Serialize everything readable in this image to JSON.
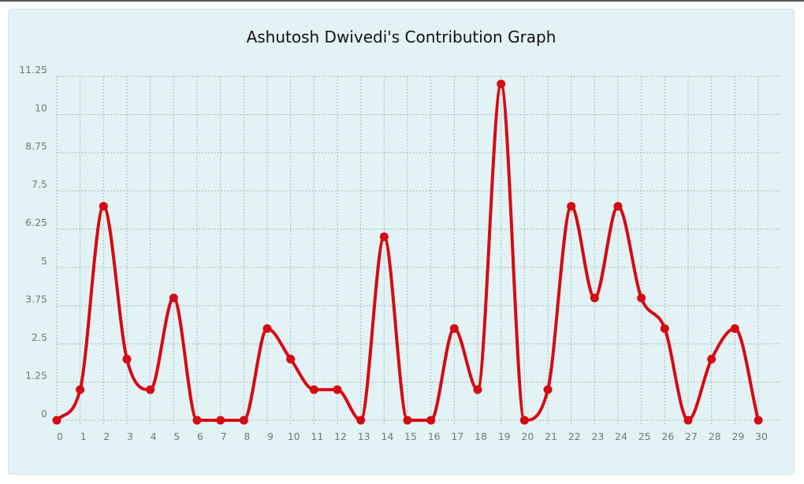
{
  "chart_data": {
    "type": "line",
    "title": "Ashutosh Dwivedi's Contribution Graph",
    "xlabel": "",
    "ylabel": "",
    "x": [
      0,
      1,
      2,
      3,
      4,
      5,
      6,
      7,
      8,
      9,
      10,
      11,
      12,
      13,
      14,
      15,
      16,
      17,
      18,
      19,
      20,
      21,
      22,
      23,
      24,
      25,
      26,
      27,
      28,
      29,
      30
    ],
    "series": [
      {
        "values": [
          0,
          1,
          7,
          2,
          1,
          4,
          0,
          0,
          0,
          3,
          2,
          1,
          1,
          0,
          6,
          0,
          0,
          3,
          1,
          11,
          0,
          1,
          7,
          4,
          7,
          4,
          3,
          0,
          2,
          3,
          0
        ]
      }
    ],
    "xlim": [
      0,
      30
    ],
    "ylim": [
      0,
      11.25
    ],
    "yticks": [
      "0",
      "1.25",
      "2.5",
      "3.75",
      "5",
      "6.25",
      "7.5",
      "8.75",
      "10",
      "11.25"
    ],
    "xticks": [
      "0",
      "1",
      "2",
      "3",
      "4",
      "5",
      "6",
      "7",
      "8",
      "9",
      "10",
      "11",
      "12",
      "13",
      "14",
      "15",
      "16",
      "17",
      "18",
      "19",
      "20",
      "21",
      "22",
      "23",
      "24",
      "25",
      "26",
      "27",
      "28",
      "29",
      "30"
    ],
    "grid": true,
    "line_color": "#d60a13"
  }
}
